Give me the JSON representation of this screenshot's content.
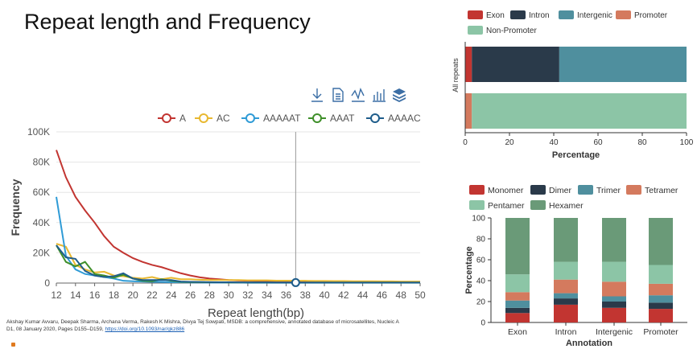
{
  "slide": {
    "title": "Repeat length and Frequency",
    "citation_text": "Akshay Kumar Avvaru, Deepak Sharma, Archana Verma, Rakesh K Mishra, Divya Tej Sowpati, MSDB: a comprehensive, annotated database of microsatellites, Nucleic A",
    "citation_text2": "D1, 08 January 2020, Pages D155–D159,",
    "citation_link": "https://doi.org/10.1093/nar/gkz886"
  },
  "toolbar": {
    "icons": [
      "download-icon",
      "data-view-icon",
      "line-switch-icon",
      "bar-switch-icon",
      "stack-icon"
    ]
  },
  "chart_data": [
    {
      "type": "line",
      "xlabel": "Repeat length(bp)",
      "ylabel": "Frequency",
      "x": [
        12,
        13,
        14,
        15,
        16,
        17,
        18,
        19,
        20,
        21,
        22,
        23,
        24,
        25,
        26,
        27,
        28,
        29,
        30,
        31,
        32,
        33,
        34,
        35,
        36,
        37,
        38,
        39,
        40,
        41,
        42,
        43,
        44,
        45,
        46,
        47,
        48,
        49,
        50
      ],
      "xticks": [
        "12",
        "14",
        "16",
        "18",
        "20",
        "22",
        "24",
        "26",
        "28",
        "30",
        "32",
        "34",
        "36",
        "38",
        "40",
        "42",
        "44",
        "46",
        "48",
        "50"
      ],
      "yticks": [
        "0",
        "20K",
        "40K",
        "60K",
        "80K",
        "100K"
      ],
      "ylim": [
        0,
        100000
      ],
      "cursor_x": 37,
      "series": [
        {
          "name": "A",
          "color": "#c23531",
          "values": [
            88000,
            70000,
            57000,
            48000,
            40000,
            31000,
            24000,
            20000,
            16500,
            14000,
            12000,
            10500,
            8500,
            6500,
            5000,
            3800,
            3000,
            2500,
            2000,
            1700,
            1500,
            1300,
            1100,
            1000,
            900,
            800,
            700,
            650,
            600,
            550,
            500,
            450,
            420,
            400,
            380,
            350,
            320,
            300,
            280
          ]
        },
        {
          "name": "AC",
          "color": "#e8b830",
          "values": [
            26000,
            24000,
            12000,
            9000,
            7000,
            7500,
            5000,
            4500,
            3500,
            3000,
            4000,
            2500,
            3500,
            2500,
            2500,
            2200,
            2000,
            2000,
            2000,
            2000,
            1800,
            1800,
            1800,
            1600,
            1600,
            1500,
            1500,
            1400,
            1400,
            1300,
            1300,
            1200,
            1200,
            1200,
            1100,
            1100,
            1000,
            1000,
            1000
          ]
        },
        {
          "name": "AAAAAT",
          "color": "#2f9bd6",
          "values": [
            57000,
            18000,
            9000,
            6000,
            5000,
            4000,
            3000,
            1500,
            1200,
            1000,
            800,
            700,
            600,
            500,
            400,
            400,
            300,
            300,
            300,
            300,
            200,
            200,
            200,
            200,
            200,
            200,
            200,
            200,
            200,
            200,
            200,
            200,
            200,
            200,
            200,
            200,
            200,
            200,
            200
          ]
        },
        {
          "name": "AAAT",
          "color": "#3f8f2a",
          "values": [
            25000,
            14000,
            11000,
            14000,
            6000,
            5000,
            3500,
            5500,
            3000,
            1500,
            1200,
            2500,
            1500,
            800,
            600,
            600,
            500,
            500,
            400,
            400,
            400,
            400,
            400,
            300,
            300,
            300,
            300,
            300,
            300,
            300,
            300,
            300,
            300,
            300,
            300,
            300,
            300,
            300,
            300
          ]
        },
        {
          "name": "AAAAC",
          "color": "#1f5d8b",
          "values": [
            25000,
            17000,
            16000,
            8000,
            5000,
            4000,
            4500,
            6500,
            3000,
            2000,
            2000,
            2000,
            2000,
            1000,
            800,
            700,
            600,
            500,
            500,
            400,
            400,
            400,
            400,
            300,
            300,
            300,
            300,
            300,
            300,
            300,
            300,
            300,
            300,
            300,
            300,
            300,
            300,
            300,
            300
          ]
        }
      ]
    },
    {
      "type": "bar",
      "orientation": "horizontal",
      "stacked": true,
      "xlabel": "Percentage",
      "ylabel": "All repeats",
      "xlim": [
        0,
        100
      ],
      "xticks": [
        "0",
        "20",
        "40",
        "60",
        "80",
        "100"
      ],
      "legend": [
        {
          "name": "Exon",
          "color": "#c23531"
        },
        {
          "name": "Intron",
          "color": "#2a3a4a"
        },
        {
          "name": "Intergenic",
          "color": "#4f8f9e"
        },
        {
          "name": "Promoter",
          "color": "#d47a5e"
        },
        {
          "name": "Non-Promoter",
          "color": "#8cc5a6"
        }
      ],
      "bars": [
        {
          "segments": [
            {
              "name": "Exon",
              "value": 3
            },
            {
              "name": "Intron",
              "value": 39.5
            },
            {
              "name": "Intergenic",
              "value": 57.5
            }
          ]
        },
        {
          "segments": [
            {
              "name": "Promoter",
              "value": 3
            },
            {
              "name": "Non-Promoter",
              "value": 97
            }
          ]
        }
      ]
    },
    {
      "type": "bar",
      "stacked": true,
      "xlabel": "Annotation",
      "ylabel": "Percentage",
      "ylim": [
        0,
        100
      ],
      "yticks": [
        "0",
        "20",
        "40",
        "60",
        "80",
        "100"
      ],
      "categories": [
        "Exon",
        "Intron",
        "Intergenic",
        "Promoter"
      ],
      "series": [
        {
          "name": "Monomer",
          "color": "#c23531",
          "values": [
            9,
            17,
            14,
            13
          ]
        },
        {
          "name": "Dimer",
          "color": "#2a3a4a",
          "values": [
            5,
            6,
            6,
            6
          ]
        },
        {
          "name": "Trimer",
          "color": "#4f8f9e",
          "values": [
            7,
            5,
            5,
            7
          ]
        },
        {
          "name": "Tetramer",
          "color": "#d47a5e",
          "values": [
            8,
            13,
            14,
            11
          ]
        },
        {
          "name": "Pentamer",
          "color": "#8cc5a6",
          "values": [
            17,
            17,
            19,
            18
          ]
        },
        {
          "name": "Hexamer",
          "color": "#6a9a78",
          "values": [
            54,
            42,
            42,
            45
          ]
        }
      ]
    }
  ]
}
